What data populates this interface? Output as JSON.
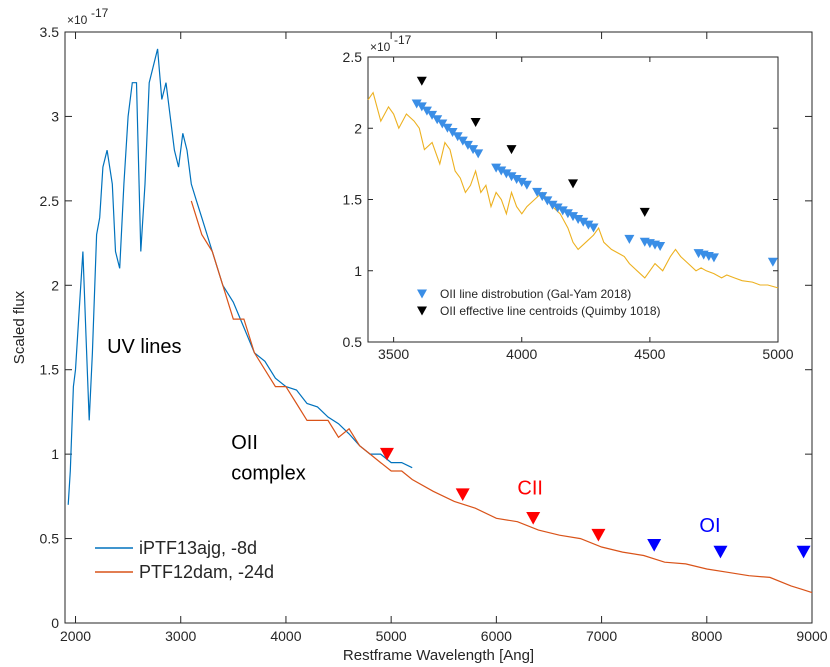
{
  "chart_data": [
    {
      "type": "line",
      "xlabel": "Restframe Wavelength [Ang]",
      "ylabel": "Scaled flux",
      "xlim": [
        1900,
        9000
      ],
      "ylim": [
        0,
        3.5e-17
      ],
      "xticks": [
        "2000",
        "3000",
        "4000",
        "5000",
        "6000",
        "7000",
        "8000",
        "9000"
      ],
      "yticks": [
        "0",
        "0.5",
        "1",
        "1.5",
        "2",
        "2.5",
        "3",
        "3.5"
      ],
      "exponent": "×10",
      "exponent_power": "-17",
      "grid": false,
      "legend_position": "bottom-left",
      "series": [
        {
          "name": "iPTF13ajg, -8d",
          "color": "#0072BD",
          "x": [
            1930,
            1950,
            1980,
            2000,
            2040,
            2070,
            2100,
            2130,
            2160,
            2200,
            2230,
            2260,
            2300,
            2350,
            2380,
            2420,
            2460,
            2500,
            2540,
            2580,
            2620,
            2660,
            2700,
            2740,
            2780,
            2820,
            2860,
            2900,
            2940,
            2980,
            3020,
            3060,
            3100,
            3150,
            3200,
            3300,
            3400,
            3500,
            3600,
            3700,
            3800,
            3900,
            4000,
            4100,
            4200,
            4300,
            4400,
            4500,
            4600,
            4700,
            4800,
            4900,
            5000,
            5100,
            5200
          ],
          "y": [
            7e-18,
            9e-18,
            1.4e-17,
            1.5e-17,
            1.9e-17,
            2.2e-17,
            1.7e-17,
            1.2e-17,
            1.6e-17,
            2.3e-17,
            2.4e-17,
            2.7e-17,
            2.8e-17,
            2.6e-17,
            2.2e-17,
            2.1e-17,
            2.6e-17,
            3e-17,
            3.2e-17,
            3.2e-17,
            2.2e-17,
            2.6e-17,
            3.2e-17,
            3.3e-17,
            3.4e-17,
            3.1e-17,
            3.2e-17,
            3e-17,
            2.8e-17,
            2.7e-17,
            2.9e-17,
            2.8e-17,
            2.6e-17,
            2.5e-17,
            2.4e-17,
            2.2e-17,
            2e-17,
            1.9e-17,
            1.75e-17,
            1.6e-17,
            1.55e-17,
            1.45e-17,
            1.4e-17,
            1.38e-17,
            1.3e-17,
            1.28e-17,
            1.22e-17,
            1.18e-17,
            1.12e-17,
            1.05e-17,
            1e-17,
            1e-17,
            9.5e-18,
            9.5e-18,
            9.2e-18
          ]
        },
        {
          "name": "PTF12dam, -24d",
          "color": "#D95319",
          "x": [
            3100,
            3200,
            3300,
            3400,
            3500,
            3600,
            3700,
            3800,
            3900,
            4000,
            4100,
            4200,
            4300,
            4400,
            4500,
            4600,
            4700,
            4800,
            4900,
            5000,
            5100,
            5200,
            5400,
            5600,
            5800,
            6000,
            6200,
            6400,
            6600,
            6800,
            7000,
            7200,
            7400,
            7600,
            7800,
            8000,
            8200,
            8400,
            8600,
            8800,
            8900,
            9000
          ],
          "y": [
            2.5e-17,
            2.3e-17,
            2.2e-17,
            2e-17,
            1.8e-17,
            1.8e-17,
            1.6e-17,
            1.5e-17,
            1.4e-17,
            1.4e-17,
            1.3e-17,
            1.2e-17,
            1.2e-17,
            1.2e-17,
            1.1e-17,
            1.15e-17,
            1.05e-17,
            1e-17,
            9.5e-18,
            9e-18,
            9e-18,
            8.5e-18,
            7.8e-18,
            7.2e-18,
            6.8e-18,
            6.2e-18,
            6e-18,
            5.5e-18,
            5.2e-18,
            5e-18,
            4.5e-18,
            4.2e-18,
            4e-18,
            3.6e-18,
            3.5e-18,
            3.2e-18,
            3e-18,
            2.8e-18,
            2.7e-18,
            2.2e-18,
            2e-18,
            1.8e-18
          ]
        }
      ],
      "markers": [
        {
          "color": "#FF0000",
          "points": [
            [
              4960,
              1e-17
            ],
            [
              5680,
              7.6e-18
            ],
            [
              6350,
              6.2e-18
            ],
            [
              6970,
              5.2e-18
            ]
          ]
        },
        {
          "color": "#0000FF",
          "points": [
            [
              7500,
              4.6e-18
            ],
            [
              8130,
              4.2e-18
            ],
            [
              8920,
              4.2e-18
            ]
          ]
        }
      ],
      "annotations": [
        {
          "text": "UV lines",
          "x": 2300,
          "y": 1.6e-17,
          "color": "#000000"
        },
        {
          "text": "OII",
          "x": 3480,
          "y": 1.03e-17,
          "color": "#000000"
        },
        {
          "text": "complex",
          "x": 3480,
          "y": 8.5e-18,
          "color": "#000000"
        },
        {
          "text": "CII",
          "x": 6200,
          "y": 7.6e-18,
          "color": "#FF0000"
        },
        {
          "text": "OI",
          "x": 7930,
          "y": 5.4e-18,
          "color": "#0000FF"
        }
      ]
    },
    {
      "type": "line",
      "xlim": [
        3400,
        5000
      ],
      "ylim": [
        5e-18,
        2.5e-17
      ],
      "xticks": [
        "3500",
        "4000",
        "4500",
        "5000"
      ],
      "yticks": [
        "0.5",
        "1",
        "1.5",
        "2",
        "2.5"
      ],
      "exponent": "×10",
      "exponent_power": "-17",
      "legend_position": "bottom",
      "series": [
        {
          "color": "#EDB120",
          "x": [
            3400,
            3420,
            3450,
            3480,
            3500,
            3520,
            3550,
            3580,
            3600,
            3620,
            3650,
            3680,
            3700,
            3720,
            3740,
            3760,
            3780,
            3800,
            3820,
            3840,
            3860,
            3880,
            3900,
            3920,
            3940,
            3960,
            3980,
            4000,
            4020,
            4050,
            4080,
            4100,
            4120,
            4150,
            4180,
            4200,
            4220,
            4250,
            4280,
            4300,
            4320,
            4350,
            4380,
            4400,
            4420,
            4450,
            4480,
            4500,
            4520,
            4550,
            4580,
            4600,
            4620,
            4650,
            4680,
            4700,
            4720,
            4750,
            4780,
            4800,
            4830,
            4860,
            4900,
            4930,
            4960,
            5000
          ],
          "y": [
            2.2e-17,
            2.25e-17,
            2.05e-17,
            2.15e-17,
            2.1e-17,
            2e-17,
            2.1e-17,
            2.05e-17,
            2e-17,
            1.85e-17,
            1.9e-17,
            1.75e-17,
            1.9e-17,
            1.85e-17,
            1.7e-17,
            1.65e-17,
            1.55e-17,
            1.6e-17,
            1.7e-17,
            1.55e-17,
            1.6e-17,
            1.45e-17,
            1.55e-17,
            1.5e-17,
            1.4e-17,
            1.55e-17,
            1.45e-17,
            1.4e-17,
            1.45e-17,
            1.5e-17,
            1.55e-17,
            1.5e-17,
            1.45e-17,
            1.4e-17,
            1.3e-17,
            1.2e-17,
            1.15e-17,
            1.2e-17,
            1.25e-17,
            1.3e-17,
            1.2e-17,
            1.15e-17,
            1.12e-17,
            1.1e-17,
            1.05e-17,
            1e-17,
            9.5e-18,
            1e-17,
            1.05e-17,
            1e-17,
            1.1e-17,
            1.15e-17,
            1.1e-17,
            1.05e-17,
            1e-17,
            1.02e-17,
            1e-17,
            9.8e-18,
            9.5e-18,
            9.7e-18,
            9.5e-18,
            9.3e-18,
            9.2e-18,
            9e-18,
            9e-18,
            8.8e-18
          ]
        }
      ],
      "markers": [
        {
          "name": "OII line distrobution (Gal-Yam 2018)",
          "color": "#3A8EE6",
          "points": [
            [
              3590,
              2.17e-17
            ],
            [
              3610,
              2.15e-17
            ],
            [
              3630,
              2.12e-17
            ],
            [
              3650,
              2.09e-17
            ],
            [
              3670,
              2.06e-17
            ],
            [
              3690,
              2.03e-17
            ],
            [
              3710,
              2e-17
            ],
            [
              3730,
              1.97e-17
            ],
            [
              3750,
              1.94e-17
            ],
            [
              3770,
              1.91e-17
            ],
            [
              3790,
              1.88e-17
            ],
            [
              3810,
              1.85e-17
            ],
            [
              3830,
              1.82e-17
            ],
            [
              3900,
              1.72e-17
            ],
            [
              3920,
              1.7e-17
            ],
            [
              3940,
              1.68e-17
            ],
            [
              3960,
              1.66e-17
            ],
            [
              3980,
              1.64e-17
            ],
            [
              4000,
              1.62e-17
            ],
            [
              4020,
              1.6e-17
            ],
            [
              4060,
              1.55e-17
            ],
            [
              4080,
              1.52e-17
            ],
            [
              4100,
              1.49e-17
            ],
            [
              4120,
              1.46e-17
            ],
            [
              4140,
              1.44e-17
            ],
            [
              4160,
              1.42e-17
            ],
            [
              4180,
              1.4e-17
            ],
            [
              4200,
              1.38e-17
            ],
            [
              4220,
              1.36e-17
            ],
            [
              4240,
              1.34e-17
            ],
            [
              4260,
              1.32e-17
            ],
            [
              4280,
              1.3e-17
            ],
            [
              4420,
              1.22e-17
            ],
            [
              4480,
              1.2e-17
            ],
            [
              4500,
              1.19e-17
            ],
            [
              4520,
              1.18e-17
            ],
            [
              4540,
              1.17e-17
            ],
            [
              4690,
              1.12e-17
            ],
            [
              4710,
              1.11e-17
            ],
            [
              4730,
              1.1e-17
            ],
            [
              4750,
              1.09e-17
            ],
            [
              4980,
              1.06e-17
            ]
          ]
        },
        {
          "name": "OII effective line centroids (Quimby 1018)",
          "color": "#000000",
          "points": [
            [
              3610,
              2.33e-17
            ],
            [
              3820,
              2.04e-17
            ],
            [
              3960,
              1.85e-17
            ],
            [
              4200,
              1.61e-17
            ],
            [
              4480,
              1.41e-17
            ]
          ]
        }
      ]
    }
  ]
}
